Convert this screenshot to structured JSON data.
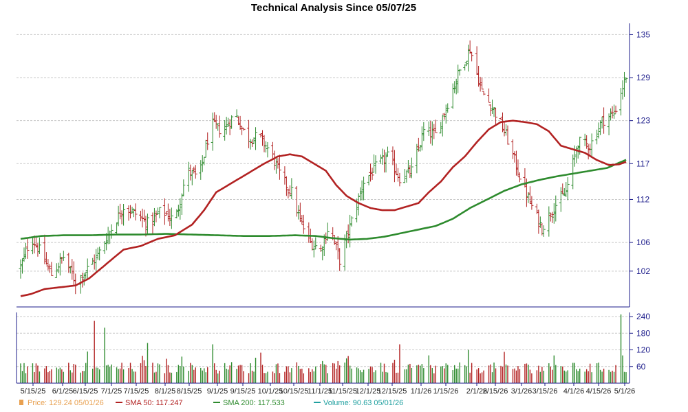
{
  "chart_data": {
    "type": "line",
    "title": "Technical Analysis Since 05/07/25",
    "price_axis": {
      "ylim": [
        97,
        136
      ],
      "ticks": [
        102,
        106,
        112,
        117,
        123,
        129,
        135
      ]
    },
    "volume_axis": {
      "ylim": [
        0,
        255
      ],
      "ticks": [
        60,
        120,
        180,
        240
      ]
    },
    "x_ticks": [
      "5/15/25",
      "6/1/25",
      "6/15/25",
      "7/1/25",
      "7/15/25",
      "8/1/25",
      "8/15/25",
      "9/1/25",
      "9/15/25",
      "10/1/25",
      "10/15/25",
      "11/1/25",
      "11/15/25",
      "12/1/25",
      "12/15/25",
      "1/1/26",
      "1/15/26",
      "2/1/26",
      "2/15/26",
      "3/1/26",
      "3/15/26",
      "4/1/26",
      "4/15/26",
      "5/1/26"
    ],
    "series": [
      {
        "name": "Price",
        "color": "#e8a050",
        "style": "ohlc-bars",
        "values": [
          [
            0,
            102.5
          ],
          [
            6,
            106.8
          ],
          [
            12,
            104.5
          ],
          [
            18,
            101.5
          ],
          [
            25,
            104.0
          ],
          [
            32,
            100.5
          ],
          [
            38,
            102.0
          ],
          [
            45,
            104.2
          ],
          [
            52,
            107.5
          ],
          [
            60,
            111.0
          ],
          [
            67,
            110.0
          ],
          [
            75,
            108.5
          ],
          [
            82,
            110.5
          ],
          [
            90,
            109.0
          ],
          [
            97,
            116.0
          ],
          [
            104,
            115.0
          ],
          [
            111,
            122.5
          ],
          [
            118,
            121.5
          ],
          [
            125,
            124.0
          ],
          [
            132,
            120.5
          ],
          [
            139,
            120.8
          ],
          [
            146,
            118.5
          ],
          [
            152,
            115.0
          ],
          [
            158,
            113.0
          ],
          [
            163,
            109.0
          ],
          [
            169,
            106.0
          ],
          [
            175,
            105.0
          ],
          [
            180,
            108.5
          ],
          [
            186,
            103.5
          ],
          [
            193,
            109.0
          ],
          [
            200,
            114.5
          ],
          [
            207,
            116.5
          ],
          [
            214,
            118.0
          ],
          [
            221,
            115.0
          ],
          [
            228,
            116.0
          ],
          [
            235,
            121.5
          ],
          [
            242,
            121.0
          ],
          [
            249,
            125.5
          ],
          [
            256,
            130.0
          ],
          [
            262,
            133.0
          ],
          [
            269,
            127.0
          ],
          [
            276,
            124.5
          ],
          [
            283,
            121.0
          ],
          [
            290,
            116.0
          ],
          [
            297,
            111.5
          ],
          [
            304,
            108.0
          ],
          [
            311,
            111.0
          ],
          [
            318,
            113.0
          ],
          [
            325,
            120.0
          ],
          [
            332,
            119.5
          ],
          [
            339,
            123.0
          ],
          [
            346,
            124.0
          ],
          [
            353,
            129.24
          ]
        ],
        "last_label": "129.24",
        "last_date": "05/01/26"
      },
      {
        "name": "SMA 50",
        "color": "#b22222",
        "style": "line",
        "values": [
          [
            0,
            98.5
          ],
          [
            6,
            98.8
          ],
          [
            14,
            99.5
          ],
          [
            25,
            99.8
          ],
          [
            32,
            100.0
          ],
          [
            40,
            101.0
          ],
          [
            50,
            103.0
          ],
          [
            60,
            105.0
          ],
          [
            70,
            105.5
          ],
          [
            80,
            106.5
          ],
          [
            90,
            107.0
          ],
          [
            100,
            108.5
          ],
          [
            107,
            110.5
          ],
          [
            114,
            113.0
          ],
          [
            121,
            114.0
          ],
          [
            128,
            115.0
          ],
          [
            135,
            116.0
          ],
          [
            142,
            117.0
          ],
          [
            150,
            118.0
          ],
          [
            157,
            118.3
          ],
          [
            164,
            118.0
          ],
          [
            171,
            117.0
          ],
          [
            178,
            116.0
          ],
          [
            184,
            114.0
          ],
          [
            190,
            112.5
          ],
          [
            197,
            111.5
          ],
          [
            204,
            110.8
          ],
          [
            211,
            110.5
          ],
          [
            218,
            110.5
          ],
          [
            225,
            111.0
          ],
          [
            232,
            111.5
          ],
          [
            238,
            113.0
          ],
          [
            245,
            114.5
          ],
          [
            252,
            116.5
          ],
          [
            259,
            118.0
          ],
          [
            266,
            120.0
          ],
          [
            273,
            121.8
          ],
          [
            280,
            122.8
          ],
          [
            287,
            123.0
          ],
          [
            294,
            122.8
          ],
          [
            301,
            122.5
          ],
          [
            308,
            121.5
          ],
          [
            315,
            119.5
          ],
          [
            322,
            119.0
          ],
          [
            329,
            118.5
          ],
          [
            336,
            117.5
          ],
          [
            343,
            116.8
          ],
          [
            349,
            116.9
          ],
          [
            353,
            117.247
          ]
        ],
        "last_label": "117.247"
      },
      {
        "name": "SMA 200",
        "color": "#2e8b2e",
        "style": "line",
        "values": [
          [
            0,
            106.5
          ],
          [
            12,
            106.9
          ],
          [
            25,
            107.0
          ],
          [
            40,
            107.0
          ],
          [
            55,
            107.1
          ],
          [
            70,
            107.1
          ],
          [
            85,
            107.2
          ],
          [
            100,
            107.1
          ],
          [
            115,
            107.0
          ],
          [
            130,
            106.9
          ],
          [
            145,
            106.9
          ],
          [
            160,
            107.0
          ],
          [
            172,
            106.9
          ],
          [
            182,
            106.6
          ],
          [
            192,
            106.4
          ],
          [
            202,
            106.5
          ],
          [
            212,
            106.8
          ],
          [
            222,
            107.3
          ],
          [
            232,
            107.8
          ],
          [
            242,
            108.3
          ],
          [
            252,
            109.3
          ],
          [
            262,
            110.8
          ],
          [
            272,
            112.0
          ],
          [
            282,
            113.2
          ],
          [
            292,
            114.1
          ],
          [
            302,
            114.7
          ],
          [
            312,
            115.2
          ],
          [
            322,
            115.6
          ],
          [
            332,
            116.0
          ],
          [
            342,
            116.4
          ],
          [
            353,
            117.533
          ]
        ],
        "last_label": "117.533"
      },
      {
        "name": "Volume",
        "color": "#20a0a0",
        "style": "bars",
        "values": [],
        "last_label": "90.63",
        "last_date": "05/01/26"
      }
    ],
    "legend": [
      {
        "key": "price",
        "text": "Price: 129.24  05/01/26",
        "color": "#e8a050",
        "marker": "square"
      },
      {
        "key": "sma50",
        "text": "SMA 50: 117.247",
        "color": "#b22222",
        "marker": "line"
      },
      {
        "key": "sma200",
        "text": "SMA 200: 117.533",
        "color": "#2e8b2e",
        "marker": "line"
      },
      {
        "key": "volume",
        "text": "Volume: 90.63  05/01/26",
        "color": "#20a0a0",
        "marker": "line"
      }
    ],
    "legend_position": "bottom",
    "grid": true,
    "colors": {
      "up": "#2e8b2e",
      "down": "#b22222",
      "axis": "#1a1a8a"
    }
  }
}
